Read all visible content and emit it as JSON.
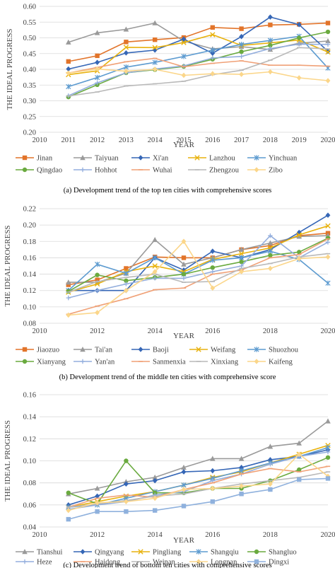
{
  "chart_data": [
    {
      "type": "line",
      "caption": "(a)   Development trend of the top ten cities with comprehensive scores",
      "xlabel": "YEAR",
      "ylabel": "THE IDEAL PROGRESS",
      "xlim": [
        2010,
        2020
      ],
      "ylim": [
        0.2,
        0.6
      ],
      "xticks": [
        "2010",
        "2011",
        "2012",
        "2013",
        "2014",
        "2015",
        "2016",
        "2017",
        "2018",
        "2019",
        "2020"
      ],
      "yticks": [
        "0.20",
        "0.25",
        "0.30",
        "0.35",
        "0.40",
        "0.45",
        "0.50",
        "0.55",
        "0.60"
      ],
      "grid": "horizontal",
      "legend": "bottom",
      "x": [
        2011,
        2012,
        2013,
        2014,
        2015,
        2016,
        2017,
        2018,
        2019,
        2020
      ],
      "series": [
        {
          "name": "Jinan",
          "color": "#e2742a",
          "marker": "square",
          "values": [
            0.425,
            0.443,
            0.487,
            0.494,
            0.501,
            0.533,
            0.529,
            0.541,
            0.543,
            0.547
          ]
        },
        {
          "name": "Taiyuan",
          "color": "#9a9a9a",
          "marker": "triangle",
          "values": [
            0.486,
            0.516,
            0.527,
            0.547,
            0.49,
            0.465,
            0.472,
            0.463,
            0.483,
            0.49
          ]
        },
        {
          "name": "Xi'an",
          "color": "#3566b6",
          "marker": "diamond",
          "values": [
            0.401,
            0.422,
            0.452,
            0.461,
            0.496,
            0.451,
            0.504,
            0.566,
            0.542,
            0.457
          ]
        },
        {
          "name": "Lanzhou",
          "color": "#e8b20e",
          "marker": "x",
          "values": [
            0.383,
            0.395,
            0.47,
            0.469,
            0.485,
            0.51,
            0.476,
            0.484,
            0.493,
            0.455
          ]
        },
        {
          "name": "Yinchuan",
          "color": "#5d9bd0",
          "marker": "star",
          "values": [
            0.345,
            0.374,
            0.407,
            0.422,
            0.441,
            0.461,
            0.479,
            0.492,
            0.505,
            0.404
          ]
        },
        {
          "name": "Qingdao",
          "color": "#6aaa3f",
          "marker": "circle",
          "values": [
            0.312,
            0.351,
            0.389,
            0.399,
            0.409,
            0.432,
            0.456,
            0.476,
            0.5,
            0.519
          ]
        },
        {
          "name": "Hohhot",
          "color": "#93aedd",
          "marker": "plus",
          "values": [
            0.316,
            0.357,
            0.389,
            0.401,
            0.411,
            0.436,
            0.441,
            0.466,
            0.48,
            0.479
          ]
        },
        {
          "name": "Wuhai",
          "color": "#f0a177",
          "marker": "dash",
          "values": [
            0.388,
            0.406,
            0.424,
            0.435,
            0.408,
            0.419,
            0.427,
            0.413,
            0.413,
            0.41
          ]
        },
        {
          "name": "Zhengzou",
          "color": "#b9b9b9",
          "marker": "dash",
          "values": [
            0.315,
            0.328,
            0.347,
            0.354,
            0.362,
            0.383,
            0.397,
            0.429,
            0.469,
            0.465
          ]
        },
        {
          "name": "Zibo",
          "color": "#fbd68a",
          "marker": "diamond",
          "values": [
            0.388,
            0.401,
            0.394,
            0.4,
            0.381,
            0.386,
            0.384,
            0.392,
            0.373,
            0.364
          ]
        }
      ]
    },
    {
      "type": "line",
      "caption": "(b)   Development trend of the middle ten cities with comprehensive score",
      "xlabel": "YEAR",
      "ylabel": "THE IDEAL PROGRESS",
      "xlim": [
        2010,
        2020
      ],
      "ylim": [
        0.08,
        0.22
      ],
      "xticks": [
        "2010",
        "2012",
        "2014",
        "2016",
        "2018",
        "2020"
      ],
      "yticks": [
        "0.08",
        "0.10",
        "0.12",
        "0.14",
        "0.16",
        "0.18",
        "0.20",
        "0.22"
      ],
      "grid": "horizontal",
      "legend": "bottom",
      "x": [
        2011,
        2012,
        2013,
        2014,
        2015,
        2016,
        2017,
        2018,
        2019,
        2020
      ],
      "series": [
        {
          "name": "Jiaozuo",
          "color": "#e2742a",
          "marker": "square",
          "values": [
            0.127,
            0.133,
            0.147,
            0.161,
            0.16,
            0.16,
            0.17,
            0.175,
            0.187,
            0.19
          ]
        },
        {
          "name": "Tai'an",
          "color": "#9a9a9a",
          "marker": "triangle",
          "values": [
            0.13,
            0.13,
            0.141,
            0.182,
            0.152,
            0.16,
            0.17,
            0.178,
            0.186,
            0.187
          ]
        },
        {
          "name": "Baoji",
          "color": "#3566b6",
          "marker": "diamond",
          "values": [
            0.12,
            0.12,
            0.12,
            0.16,
            0.145,
            0.168,
            0.16,
            0.17,
            0.191,
            0.212
          ]
        },
        {
          "name": "Weifang",
          "color": "#e8b20e",
          "marker": "x",
          "values": [
            0.118,
            0.128,
            0.143,
            0.15,
            0.143,
            0.158,
            0.165,
            0.172,
            0.188,
            0.199
          ]
        },
        {
          "name": "Shuozhou",
          "color": "#5d9bd0",
          "marker": "star",
          "values": [
            0.12,
            0.152,
            0.141,
            0.16,
            0.14,
            0.157,
            0.16,
            0.168,
            0.158,
            0.129
          ]
        },
        {
          "name": "Xianyang",
          "color": "#6aaa3f",
          "marker": "circle",
          "values": [
            0.119,
            0.139,
            0.132,
            0.136,
            0.14,
            0.148,
            0.155,
            0.163,
            0.167,
            0.184
          ]
        },
        {
          "name": "Yan'an",
          "color": "#93aedd",
          "marker": "plus",
          "values": [
            0.111,
            0.12,
            0.128,
            0.135,
            0.135,
            0.143,
            0.15,
            0.187,
            0.16,
            0.179
          ]
        },
        {
          "name": "Sanmenxia",
          "color": "#f0a177",
          "marker": "dash",
          "values": [
            0.091,
            0.101,
            0.11,
            0.121,
            0.123,
            0.14,
            0.145,
            0.16,
            0.164,
            0.183
          ]
        },
        {
          "name": "Xinxiang",
          "color": "#b9b9b9",
          "marker": "dash",
          "values": [
            0.118,
            0.131,
            0.136,
            0.14,
            0.13,
            0.131,
            0.147,
            0.153,
            0.161,
            0.165
          ]
        },
        {
          "name": "Kaifeng",
          "color": "#fbd68a",
          "marker": "diamond",
          "values": [
            0.09,
            0.093,
            0.12,
            0.143,
            0.18,
            0.123,
            0.143,
            0.147,
            0.159,
            0.161
          ]
        }
      ]
    },
    {
      "type": "line",
      "caption": "(c)   Development trend of bottom ten cities with comprehensive scores",
      "xlabel": "YEAR",
      "ylabel": "THE IDEAL PROGRESS",
      "xlim": [
        2010,
        2020
      ],
      "ylim": [
        0.04,
        0.16
      ],
      "xticks": [
        "2010",
        "2012",
        "2014",
        "2016",
        "2018",
        "2020"
      ],
      "yticks": [
        "0.04",
        "0.06",
        "0.08",
        "0.10",
        "0.12",
        "0.14",
        "0.16"
      ],
      "grid": "horizontal",
      "legend": "bottom",
      "x": [
        2011,
        2012,
        2013,
        2014,
        2015,
        2016,
        2017,
        2018,
        2019,
        2020
      ],
      "series": [
        {
          "name": "Tianshui",
          "color": "#9a9a9a",
          "marker": "triangle",
          "values": [
            0.07,
            0.075,
            0.081,
            0.085,
            0.094,
            0.102,
            0.102,
            0.113,
            0.116,
            0.136
          ]
        },
        {
          "name": "Qingyang",
          "color": "#3566b6",
          "marker": "diamond",
          "values": [
            0.06,
            0.068,
            0.079,
            0.082,
            0.09,
            0.091,
            0.094,
            0.101,
            0.104,
            0.11
          ]
        },
        {
          "name": "Pingliang",
          "color": "#e8b20e",
          "marker": "x",
          "values": [
            0.058,
            0.063,
            0.068,
            0.072,
            0.078,
            0.085,
            0.09,
            0.098,
            0.106,
            0.114
          ]
        },
        {
          "name": "Shangqiu",
          "color": "#5d9bd0",
          "marker": "star",
          "values": [
            0.058,
            0.06,
            0.066,
            0.072,
            0.078,
            0.084,
            0.091,
            0.098,
            0.104,
            0.112
          ]
        },
        {
          "name": "Shangluo",
          "color": "#6aaa3f",
          "marker": "circle",
          "values": [
            0.071,
            0.061,
            0.1,
            0.071,
            0.071,
            0.075,
            0.075,
            0.082,
            0.092,
            0.103
          ]
        },
        {
          "name": "Heze",
          "color": "#93aedd",
          "marker": "plus",
          "values": [
            0.056,
            0.06,
            0.063,
            0.069,
            0.072,
            0.082,
            0.088,
            0.097,
            0.104,
            0.108
          ]
        },
        {
          "name": "Haidong",
          "color": "#f0a177",
          "marker": "dash",
          "values": [
            0.058,
            0.066,
            0.069,
            0.067,
            0.074,
            0.08,
            0.088,
            0.093,
            0.09,
            0.095
          ]
        },
        {
          "name": "Weinan",
          "color": "#b9b9b9",
          "marker": "dash",
          "values": [
            0.058,
            0.061,
            0.064,
            0.068,
            0.07,
            0.075,
            0.079,
            0.082,
            0.085,
            0.09
          ]
        },
        {
          "name": "Longnan",
          "color": "#fbd68a",
          "marker": "diamond",
          "values": [
            0.055,
            0.062,
            0.063,
            0.066,
            0.074,
            0.075,
            0.077,
            0.079,
            0.106,
            0.086
          ]
        },
        {
          "name": "Dingxi",
          "color": "#8fb1dd",
          "marker": "square",
          "values": [
            0.047,
            0.054,
            0.054,
            0.055,
            0.059,
            0.063,
            0.07,
            0.074,
            0.083,
            0.084
          ]
        }
      ]
    }
  ]
}
